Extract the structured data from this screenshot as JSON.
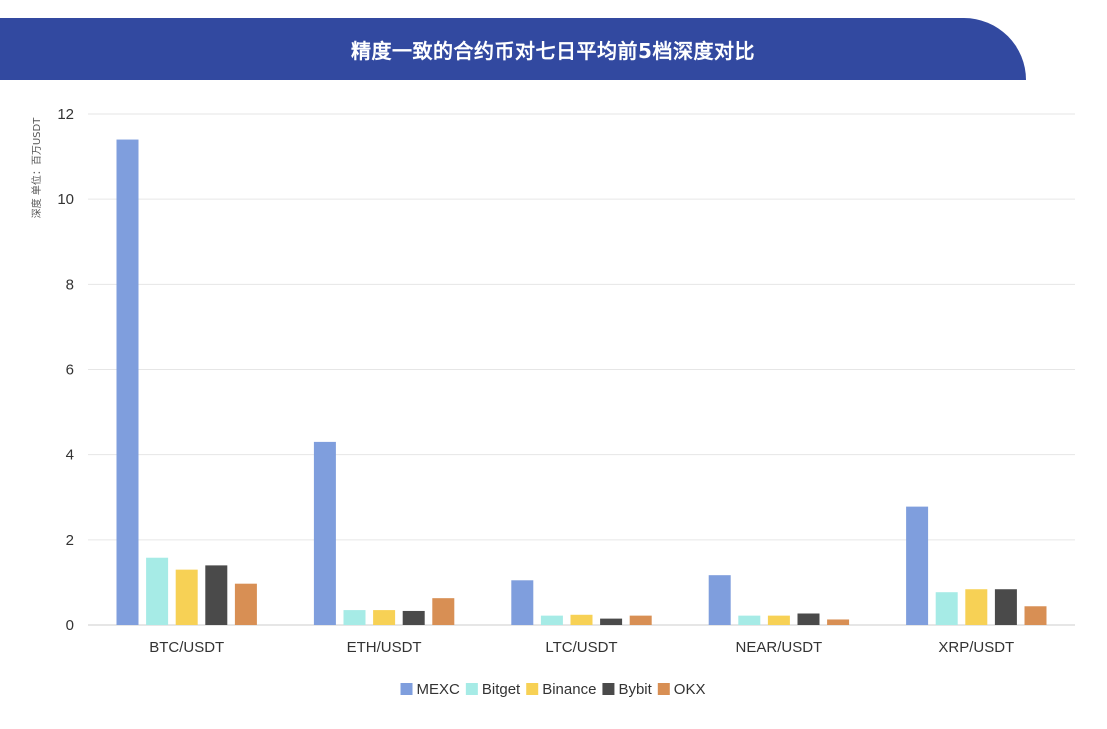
{
  "header": {
    "title": "精度一致的合约币对七日平均前5档深度对比"
  },
  "chart_data": {
    "type": "bar",
    "title": "精度一致的合约币对七日平均前5档深度对比",
    "xlabel": "",
    "ylabel": "深度 单位：百万USDT",
    "ylim": [
      0,
      12
    ],
    "yticks": [
      0,
      2,
      4,
      6,
      8,
      10,
      12
    ],
    "grid": true,
    "legend_position": "bottom",
    "categories": [
      "BTC/USDT",
      "ETH/USDT",
      "LTC/USDT",
      "NEAR/USDT",
      "XRP/USDT"
    ],
    "series": [
      {
        "name": "MEXC",
        "color": "#7f9edd",
        "values": [
          11.4,
          4.3,
          1.05,
          1.17,
          2.78
        ]
      },
      {
        "name": "Bitget",
        "color": "#a6ebe6",
        "values": [
          1.58,
          0.35,
          0.22,
          0.22,
          0.77
        ]
      },
      {
        "name": "Binance",
        "color": "#f7d155",
        "values": [
          1.3,
          0.35,
          0.24,
          0.22,
          0.84
        ]
      },
      {
        "name": "Bybit",
        "color": "#4a4a4a",
        "values": [
          1.4,
          0.33,
          0.15,
          0.27,
          0.84
        ]
      },
      {
        "name": "OKX",
        "color": "#d88f54",
        "values": [
          0.97,
          0.63,
          0.22,
          0.13,
          0.44
        ]
      }
    ]
  }
}
